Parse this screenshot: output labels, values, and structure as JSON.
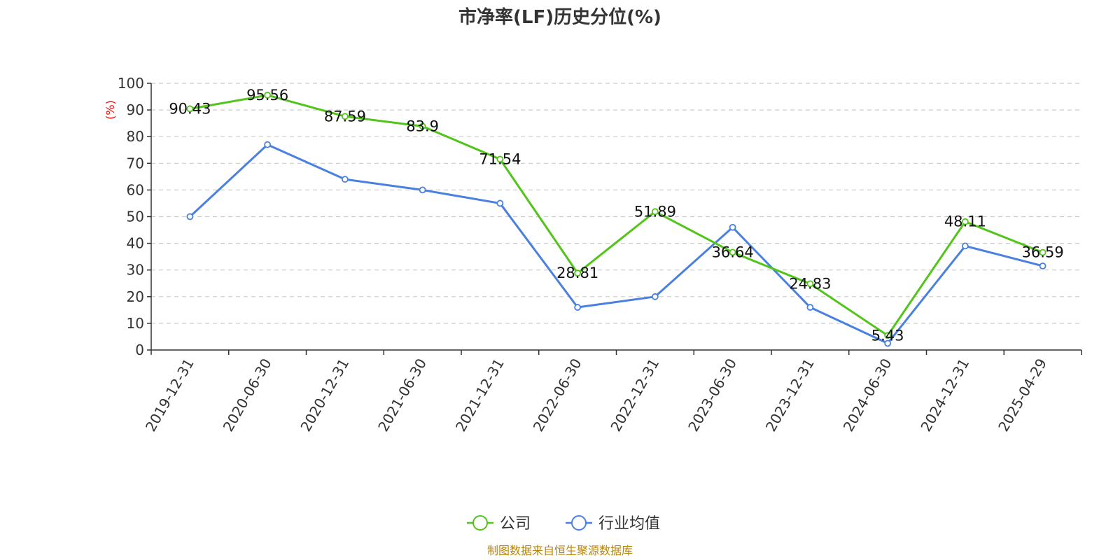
{
  "chart_data": {
    "type": "line",
    "title": "市净率(LF)历史分位(%)",
    "ylabel": "(%)",
    "xlabel": "",
    "ylim": [
      0,
      100
    ],
    "yticks": [
      0,
      10,
      20,
      30,
      40,
      50,
      60,
      70,
      80,
      90,
      100
    ],
    "grid": true,
    "legend_position": "bottom-center",
    "categories": [
      "2019-12-31",
      "2020-06-30",
      "2020-12-31",
      "2021-06-30",
      "2021-12-31",
      "2022-06-30",
      "2022-12-31",
      "2023-06-30",
      "2023-12-31",
      "2024-06-30",
      "2024-12-31",
      "2025-04-29"
    ],
    "series": [
      {
        "name": "公司",
        "color": "#52c41a",
        "values": [
          90.43,
          95.56,
          87.59,
          83.9,
          71.54,
          28.81,
          51.89,
          36.64,
          24.83,
          5.43,
          48.11,
          36.59
        ],
        "labels": [
          "90.43",
          "95.56",
          "87.59",
          "83.9",
          "71.54",
          "28.81",
          "51.89",
          "36.64",
          "24.83",
          "5.43",
          "48.11",
          "36.59"
        ]
      },
      {
        "name": "行业均值",
        "color": "#4a80e0",
        "values": [
          50,
          77,
          64,
          60,
          55,
          16,
          20,
          46,
          16,
          2.5,
          39,
          31.5
        ]
      }
    ],
    "source": "制图数据来自恒生聚源数据库",
    "ylabel_color": "#ff0000",
    "gridline_color": "#cccccc"
  }
}
